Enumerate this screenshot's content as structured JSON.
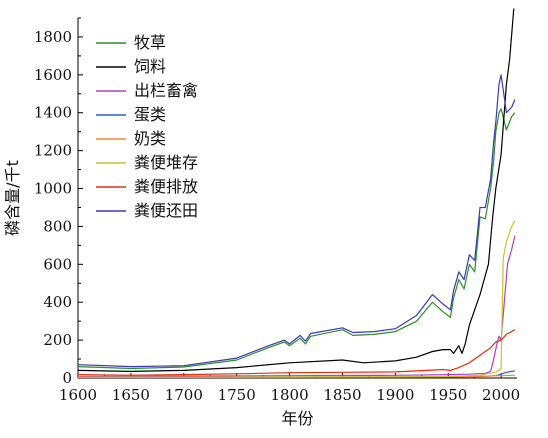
{
  "chart_data": {
    "type": "line",
    "xlabel": "年份",
    "ylabel": "磷含量/千t",
    "xlim": [
      1600,
      2015
    ],
    "ylim": [
      0,
      1900
    ],
    "xticks": [
      1600,
      1650,
      1700,
      1750,
      1800,
      1850,
      1900,
      1950,
      2000
    ],
    "yticks": [
      0,
      200,
      400,
      600,
      800,
      1000,
      1200,
      1400,
      1600,
      1800
    ],
    "legend_position": "top-left",
    "grid": false,
    "series": [
      {
        "name": "牧草",
        "color": "#2e8b2e",
        "points": [
          [
            1600,
            60
          ],
          [
            1650,
            50
          ],
          [
            1700,
            58
          ],
          [
            1750,
            95
          ],
          [
            1780,
            160
          ],
          [
            1795,
            190
          ],
          [
            1800,
            170
          ],
          [
            1810,
            210
          ],
          [
            1815,
            180
          ],
          [
            1820,
            220
          ],
          [
            1850,
            255
          ],
          [
            1860,
            225
          ],
          [
            1880,
            230
          ],
          [
            1900,
            245
          ],
          [
            1920,
            300
          ],
          [
            1935,
            400
          ],
          [
            1945,
            350
          ],
          [
            1952,
            320
          ],
          [
            1955,
            420
          ],
          [
            1960,
            520
          ],
          [
            1965,
            470
          ],
          [
            1970,
            600
          ],
          [
            1975,
            560
          ],
          [
            1980,
            850
          ],
          [
            1985,
            840
          ],
          [
            1990,
            1000
          ],
          [
            1993,
            1150
          ],
          [
            1995,
            1300
          ],
          [
            1998,
            1400
          ],
          [
            2000,
            1420
          ],
          [
            2005,
            1310
          ],
          [
            2010,
            1380
          ],
          [
            2013,
            1400
          ]
        ]
      },
      {
        "name": "饲料",
        "color": "#000000",
        "points": [
          [
            1600,
            40
          ],
          [
            1650,
            35
          ],
          [
            1700,
            40
          ],
          [
            1750,
            55
          ],
          [
            1800,
            80
          ],
          [
            1850,
            95
          ],
          [
            1870,
            80
          ],
          [
            1900,
            90
          ],
          [
            1920,
            110
          ],
          [
            1935,
            140
          ],
          [
            1945,
            150
          ],
          [
            1952,
            150
          ],
          [
            1955,
            130
          ],
          [
            1960,
            170
          ],
          [
            1963,
            130
          ],
          [
            1966,
            180
          ],
          [
            1970,
            280
          ],
          [
            1980,
            440
          ],
          [
            1988,
            600
          ],
          [
            1992,
            850
          ],
          [
            1995,
            1000
          ],
          [
            2000,
            1180
          ],
          [
            2005,
            1550
          ],
          [
            2008,
            1680
          ],
          [
            2012,
            1950
          ]
        ]
      },
      {
        "name": "出栏畜禽",
        "color": "#b040c0",
        "points": [
          [
            1600,
            8
          ],
          [
            1700,
            10
          ],
          [
            1800,
            12
          ],
          [
            1900,
            14
          ],
          [
            1950,
            18
          ],
          [
            1970,
            20
          ],
          [
            1985,
            25
          ],
          [
            1990,
            35
          ],
          [
            1993,
            100
          ],
          [
            1996,
            180
          ],
          [
            1998,
            220
          ],
          [
            2000,
            200
          ],
          [
            2003,
            400
          ],
          [
            2006,
            600
          ],
          [
            2010,
            680
          ],
          [
            2013,
            750
          ]
        ]
      },
      {
        "name": "蛋类",
        "color": "#3060c0",
        "points": [
          [
            1600,
            3
          ],
          [
            1700,
            3
          ],
          [
            1800,
            4
          ],
          [
            1900,
            5
          ],
          [
            1950,
            6
          ],
          [
            1980,
            8
          ],
          [
            1995,
            12
          ],
          [
            2000,
            20
          ],
          [
            2005,
            30
          ],
          [
            2010,
            35
          ],
          [
            2013,
            38
          ]
        ]
      },
      {
        "name": "奶类",
        "color": "#f08a30",
        "points": [
          [
            1600,
            4
          ],
          [
            1700,
            4
          ],
          [
            1800,
            5
          ],
          [
            1900,
            6
          ],
          [
            1950,
            7
          ],
          [
            1980,
            9
          ],
          [
            2000,
            12
          ],
          [
            2013,
            15
          ]
        ]
      },
      {
        "name": "粪便堆存",
        "color": "#c8c030",
        "points": [
          [
            1600,
            5
          ],
          [
            1700,
            5
          ],
          [
            1800,
            6
          ],
          [
            1900,
            7
          ],
          [
            1950,
            8
          ],
          [
            1960,
            10
          ],
          [
            1980,
            15
          ],
          [
            1995,
            30
          ],
          [
            2000,
            50
          ],
          [
            2002,
            630
          ],
          [
            2005,
            720
          ],
          [
            2010,
            800
          ],
          [
            2013,
            830
          ]
        ]
      },
      {
        "name": "粪便排放",
        "color": "#e03010",
        "points": [
          [
            1600,
            18
          ],
          [
            1650,
            15
          ],
          [
            1700,
            18
          ],
          [
            1750,
            22
          ],
          [
            1800,
            28
          ],
          [
            1850,
            30
          ],
          [
            1900,
            32
          ],
          [
            1930,
            40
          ],
          [
            1945,
            45
          ],
          [
            1952,
            40
          ],
          [
            1960,
            55
          ],
          [
            1970,
            80
          ],
          [
            1980,
            120
          ],
          [
            1990,
            160
          ],
          [
            1995,
            190
          ],
          [
            2000,
            200
          ],
          [
            2005,
            230
          ],
          [
            2013,
            255
          ]
        ]
      },
      {
        "name": "粪便还田",
        "color": "#3a3aaa",
        "points": [
          [
            1600,
            70
          ],
          [
            1650,
            60
          ],
          [
            1700,
            65
          ],
          [
            1750,
            105
          ],
          [
            1780,
            170
          ],
          [
            1795,
            200
          ],
          [
            1800,
            180
          ],
          [
            1810,
            225
          ],
          [
            1815,
            195
          ],
          [
            1820,
            235
          ],
          [
            1850,
            265
          ],
          [
            1860,
            240
          ],
          [
            1880,
            245
          ],
          [
            1900,
            260
          ],
          [
            1920,
            330
          ],
          [
            1935,
            440
          ],
          [
            1945,
            390
          ],
          [
            1952,
            360
          ],
          [
            1955,
            460
          ],
          [
            1960,
            560
          ],
          [
            1965,
            520
          ],
          [
            1970,
            650
          ],
          [
            1975,
            620
          ],
          [
            1980,
            900
          ],
          [
            1985,
            900
          ],
          [
            1990,
            1050
          ],
          [
            1993,
            1250
          ],
          [
            1995,
            1350
          ],
          [
            1998,
            1550
          ],
          [
            2000,
            1600
          ],
          [
            2005,
            1400
          ],
          [
            2010,
            1430
          ],
          [
            2013,
            1470
          ]
        ]
      }
    ]
  }
}
